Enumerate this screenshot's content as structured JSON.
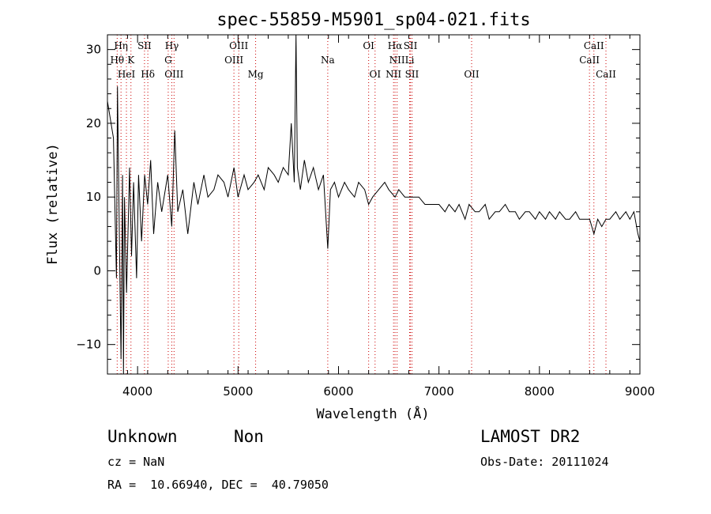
{
  "chart_data": {
    "type": "line",
    "title": "spec-55859-M5901_sp04-021.fits",
    "xlabel": "Wavelength (Å)",
    "ylabel": "Flux (relative)",
    "xlim": [
      3700,
      9000
    ],
    "ylim": [
      -14,
      32
    ],
    "x_ticks": [
      "4000",
      "5000",
      "6000",
      "7000",
      "8000",
      "9000"
    ],
    "y_ticks": [
      "−10",
      "0",
      "10",
      "20",
      "30"
    ],
    "x_tick_values": [
      4000,
      5000,
      6000,
      7000,
      8000,
      9000
    ],
    "y_tick_values": [
      -10,
      0,
      10,
      20,
      30
    ],
    "grid": false,
    "series": [
      {
        "x": [
          3700,
          3760,
          3790,
          3800,
          3820,
          3835,
          3850,
          3860,
          3870,
          3890,
          3920,
          3940,
          3960,
          3990,
          4010,
          4040,
          4070,
          4100,
          4130,
          4160,
          4200,
          4240,
          4300,
          4340,
          4370,
          4400,
          4450,
          4500,
          4560,
          4600,
          4660,
          4700,
          4760,
          4800,
          4860,
          4900,
          4960,
          5000,
          5060,
          5100,
          5160,
          5200,
          5260,
          5300,
          5360,
          5400,
          5450,
          5500,
          5530,
          5560,
          5577,
          5590,
          5620,
          5660,
          5700,
          5750,
          5800,
          5850,
          5893,
          5920,
          5960,
          6000,
          6060,
          6100,
          6160,
          6200,
          6260,
          6300,
          6340,
          6400,
          6460,
          6500,
          6563,
          6600,
          6660,
          6700,
          6760,
          6800,
          6860,
          6900,
          6960,
          7000,
          7060,
          7100,
          7160,
          7200,
          7260,
          7300,
          7360,
          7400,
          7460,
          7500,
          7560,
          7600,
          7660,
          7700,
          7760,
          7800,
          7860,
          7900,
          7960,
          8000,
          8060,
          8100,
          8160,
          8200,
          8260,
          8300,
          8360,
          8400,
          8460,
          8500,
          8542,
          8580,
          8620,
          8662,
          8700,
          8760,
          8800,
          8860,
          8900,
          8940,
          8980,
          9000
        ],
        "y": [
          23,
          18,
          -1,
          25,
          3,
          -12,
          13,
          -14,
          10,
          -3,
          14,
          2,
          12,
          -1,
          13,
          4,
          13,
          9,
          15,
          5,
          12,
          8,
          13,
          6,
          19,
          8,
          11,
          5,
          12,
          9,
          13,
          10,
          11,
          13,
          12,
          10,
          14,
          10,
          13,
          11,
          12,
          13,
          11,
          14,
          13,
          12,
          14,
          13,
          20,
          12,
          32,
          14,
          11,
          15,
          12,
          14,
          11,
          13,
          3,
          11,
          12,
          10,
          12,
          11,
          10,
          12,
          11,
          9,
          10,
          11,
          12,
          11,
          10,
          11,
          10,
          10,
          10,
          10,
          9,
          9,
          9,
          9,
          8,
          9,
          8,
          9,
          7,
          9,
          8,
          8,
          9,
          7,
          8,
          8,
          9,
          8,
          8,
          7,
          8,
          8,
          7,
          8,
          7,
          8,
          7,
          8,
          7,
          7,
          8,
          7,
          7,
          7,
          5,
          7,
          6,
          7,
          7,
          8,
          7,
          8,
          7,
          8,
          5,
          4
        ]
      }
    ],
    "line_labels": [
      {
        "text": "Hη",
        "x": 3835,
        "row": 1
      },
      {
        "text": "Hθ",
        "x": 3797,
        "row": 2
      },
      {
        "text": "K",
        "x": 3934,
        "row": 2
      },
      {
        "text": "HeI",
        "x": 3889,
        "row": 3
      },
      {
        "text": "SII",
        "x": 4069,
        "row": 1
      },
      {
        "text": "Hδ",
        "x": 4102,
        "row": 3
      },
      {
        "text": "Hγ",
        "x": 4341,
        "row": 1
      },
      {
        "text": "G",
        "x": 4305,
        "row": 2
      },
      {
        "text": "OIII",
        "x": 4363,
        "row": 3
      },
      {
        "text": "OIII",
        "x": 5007,
        "row": 1
      },
      {
        "text": "OIII",
        "x": 4959,
        "row": 2
      },
      {
        "text": "Mg",
        "x": 5175,
        "row": 3
      },
      {
        "text": "Na",
        "x": 5893,
        "row": 2
      },
      {
        "text": "OI",
        "x": 6300,
        "row": 1
      },
      {
        "text": "OI",
        "x": 6364,
        "row": 3
      },
      {
        "text": "Hα",
        "x": 6563,
        "row": 1
      },
      {
        "text": "SII",
        "x": 6716,
        "row": 1
      },
      {
        "text": "NII",
        "x": 6583,
        "row": 2
      },
      {
        "text": "Li",
        "x": 6708,
        "row": 2
      },
      {
        "text": "NII",
        "x": 6548,
        "row": 3
      },
      {
        "text": "SII",
        "x": 6731,
        "row": 3
      },
      {
        "text": "OII",
        "x": 7325,
        "row": 3
      },
      {
        "text": "CaII",
        "x": 8542,
        "row": 1
      },
      {
        "text": "CaII",
        "x": 8498,
        "row": 2
      },
      {
        "text": "CaII",
        "x": 8662,
        "row": 3
      }
    ],
    "line_positions": [
      3797,
      3835,
      3889,
      3934,
      4069,
      4102,
      4305,
      4341,
      4363,
      4959,
      5007,
      5175,
      5893,
      6300,
      6364,
      6548,
      6563,
      6583,
      6708,
      6716,
      6731,
      7325,
      8498,
      8542,
      8662
    ],
    "line_color": "#cc0000"
  },
  "info": {
    "class": "Unknown",
    "subclass": "Non",
    "survey": "LAMOST DR2",
    "cz": "cz = NaN",
    "obs_date": "Obs-Date: 20111024",
    "coords": "RA =  10.66940, DEC =  40.79050"
  }
}
